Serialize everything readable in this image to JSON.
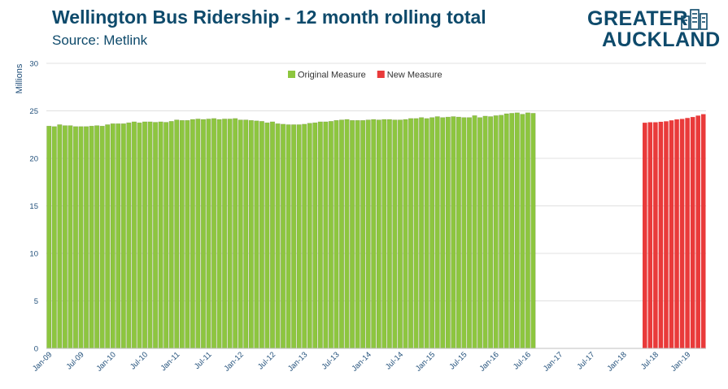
{
  "header": {
    "title": "Wellington Bus Ridership - 12 month rolling total",
    "subtitle": "Source: Metlink"
  },
  "brand": {
    "line1": "GREATER",
    "line2": "AUCKLAND",
    "icon": "city-skyline-icon",
    "color": "#0e4a6b"
  },
  "chart_data": {
    "type": "bar",
    "title": "Wellington Bus Ridership - 12 month rolling total",
    "subtitle": "Source: Metlink",
    "xlabel": "",
    "ylabel": "Millions",
    "ylim": [
      0,
      30
    ],
    "yticks": [
      0,
      5,
      10,
      15,
      20,
      25,
      30
    ],
    "grid": true,
    "legend_position": "top-center",
    "x_tick_labels": [
      "Jan-09",
      "Jul-09",
      "Jan-10",
      "Jul-10",
      "Jan-11",
      "Jul-11",
      "Jan-12",
      "Jul-12",
      "Jan-13",
      "Jul-13",
      "Jan-14",
      "Jul-14",
      "Jan-15",
      "Jul-15",
      "Jan-16",
      "Jul-16",
      "Jan-17",
      "Jul-17",
      "Jan-18",
      "Jul-18",
      "Jan-19"
    ],
    "series": [
      {
        "name": "Original Measure",
        "color": "#8dc63f",
        "start": "Jan-09",
        "values": [
          23.4,
          23.35,
          23.55,
          23.45,
          23.45,
          23.35,
          23.35,
          23.35,
          23.4,
          23.45,
          23.4,
          23.55,
          23.65,
          23.65,
          23.65,
          23.75,
          23.85,
          23.75,
          23.85,
          23.85,
          23.8,
          23.85,
          23.8,
          23.9,
          24.05,
          24.0,
          24.0,
          24.1,
          24.15,
          24.1,
          24.15,
          24.2,
          24.1,
          24.15,
          24.15,
          24.2,
          24.05,
          24.05,
          24.0,
          23.95,
          23.9,
          23.75,
          23.85,
          23.65,
          23.6,
          23.55,
          23.55,
          23.55,
          23.6,
          23.7,
          23.75,
          23.85,
          23.85,
          23.9,
          24.0,
          24.05,
          24.1,
          24.0,
          24.0,
          24.0,
          24.05,
          24.1,
          24.05,
          24.1,
          24.1,
          24.05,
          24.05,
          24.1,
          24.2,
          24.2,
          24.3,
          24.2,
          24.3,
          24.4,
          24.3,
          24.35,
          24.4,
          24.35,
          24.3,
          24.3,
          24.5,
          24.3,
          24.45,
          24.4,
          24.5,
          24.55,
          24.7,
          24.75,
          24.8,
          24.65,
          24.8,
          24.75
        ]
      },
      {
        "name": "New Measure",
        "color": "#e93a3a",
        "start": "May-18",
        "values": [
          23.75,
          23.8,
          23.8,
          23.85,
          23.9,
          24.0,
          24.1,
          24.15,
          24.25,
          24.35,
          24.5,
          24.65
        ]
      }
    ]
  }
}
